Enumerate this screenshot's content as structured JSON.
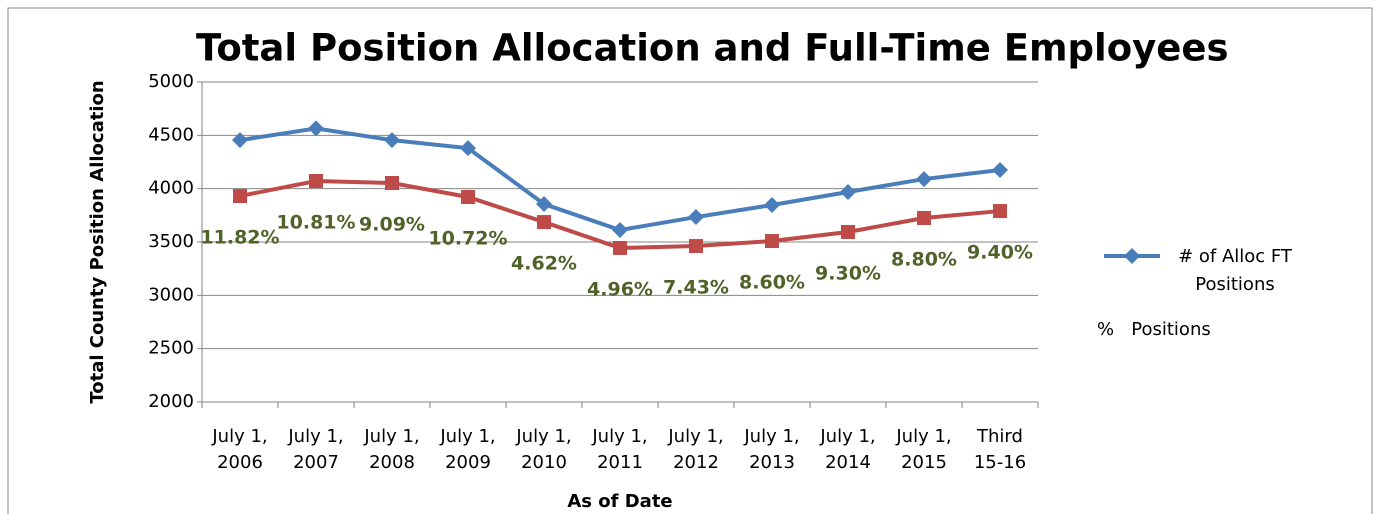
{
  "chart_data": {
    "type": "line",
    "title": "Total Position Allocation and Full-Time Employees",
    "y_label": "Total County Position Allocation",
    "x_label": "As of Date",
    "categories": [
      "July 1, 2006",
      "July 1, 2007",
      "July 1, 2008",
      "July 1, 2009",
      "July 1, 2010",
      "July 1, 2011",
      "July 1, 2012",
      "July 1, 2013",
      "July 1, 2014",
      "July 1, 2015",
      "Third 15-16"
    ],
    "series": [
      {
        "name": "# of Alloc FT Positions",
        "color": "#4a7ebb",
        "marker": "diamond",
        "values": [
          4455,
          4565,
          4455,
          4380,
          3856,
          3612,
          3734,
          3847,
          3969,
          4090,
          4175
        ]
      },
      {
        "name": "%   Positions",
        "color": "#be4b48",
        "marker": "square",
        "values": [
          3931,
          4072,
          4053,
          3922,
          3687,
          3444,
          3462,
          3509,
          3594,
          3725,
          3790
        ]
      }
    ],
    "annotations": [
      "11.82%",
      "10.81%",
      "9.09%",
      "10.72%",
      "4.62%",
      "4.96%",
      "7.43%",
      "8.60%",
      "9.30%",
      "8.80%",
      "9.40%"
    ],
    "annotation_color": "#4f6228",
    "ylim": [
      2000,
      5000
    ],
    "yticks": [
      2000,
      2500,
      3000,
      3500,
      4000,
      4500,
      5000
    ],
    "grid": true
  }
}
